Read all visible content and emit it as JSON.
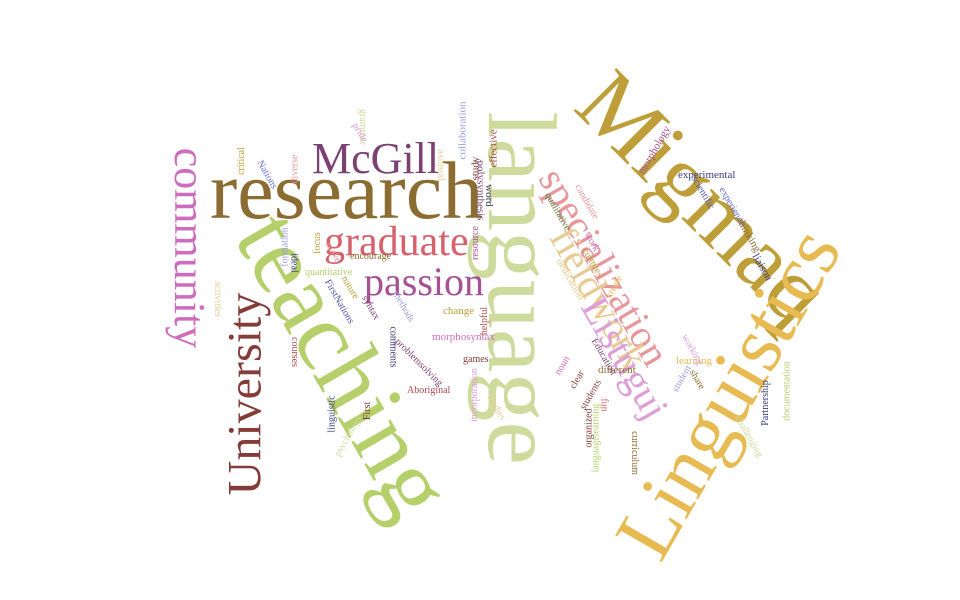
{
  "words": [
    {
      "text": "research",
      "color": "#8c6d31"
    },
    {
      "text": "teaching",
      "color": "#b5cf6b"
    },
    {
      "text": "language",
      "color": "#cedb9c"
    },
    {
      "text": "Migmaq",
      "color": "#bd9e39"
    },
    {
      "text": "Linguistics",
      "color": "#e7ba52"
    },
    {
      "text": "community",
      "color": "#ce6dbd"
    },
    {
      "text": "University",
      "color": "#843c39"
    },
    {
      "text": "McGill",
      "color": "#7b4173"
    },
    {
      "text": "graduate",
      "color": "#d6616b"
    },
    {
      "text": "passion",
      "color": "#a55194"
    },
    {
      "text": "specialization",
      "color": "#e7969c"
    },
    {
      "text": "fieldwork",
      "color": "#e7cb94"
    },
    {
      "text": "Listuguj",
      "color": "#de9ed6"
    },
    {
      "text": "collaboration",
      "color": "#9c9ede"
    },
    {
      "text": "effective",
      "color": "#ad494a"
    },
    {
      "text": "morphology",
      "color": "#a55194"
    },
    {
      "text": "experimental",
      "color": "#393b79"
    },
    {
      "text": "scientific",
      "color": "#5254a3"
    },
    {
      "text": "experience",
      "color": "#6b6ecf"
    },
    {
      "text": "thinking",
      "color": "#8c6d31"
    },
    {
      "text": "liaison",
      "color": "#393b79"
    },
    {
      "text": "Partnership",
      "color": "#393b79"
    },
    {
      "text": "documentation",
      "color": "#b5cf6b"
    },
    {
      "text": "challenging",
      "color": "#cedb9c"
    },
    {
      "text": "curriculum",
      "color": "#8c6d31"
    },
    {
      "text": "languagelearning",
      "color": "#b5cf6b"
    },
    {
      "text": "organized",
      "color": "#843c39"
    },
    {
      "text": "fun",
      "color": "#d6616b"
    },
    {
      "text": "students",
      "color": "#843c39"
    },
    {
      "text": "clear",
      "color": "#843c39"
    },
    {
      "text": "noun",
      "color": "#ce6dbd"
    },
    {
      "text": "different",
      "color": "#8c6d31"
    },
    {
      "text": "Education",
      "color": "#7b4173"
    },
    {
      "text": "learning",
      "color": "#e7ba52"
    },
    {
      "text": "student",
      "color": "#9c9ede"
    },
    {
      "text": "share",
      "color": "#8c6d31"
    },
    {
      "text": "working",
      "color": "#de9ed6"
    },
    {
      "text": "dedication",
      "color": "#e7cb94"
    },
    {
      "text": "create",
      "color": "#e7ba52"
    },
    {
      "text": "cultures",
      "color": "#bd9e39"
    },
    {
      "text": "work",
      "color": "#ce6dbd"
    },
    {
      "text": "qualitative",
      "color": "#637939"
    },
    {
      "text": "candidate",
      "color": "#e7969c"
    },
    {
      "text": "study",
      "color": "#843c39"
    },
    {
      "text": "polysynthesis",
      "color": "#7b4173"
    },
    {
      "text": "word",
      "color": "#393b79"
    },
    {
      "text": "resource",
      "color": "#a55194"
    },
    {
      "text": "helpful",
      "color": "#ad494a"
    },
    {
      "text": "change",
      "color": "#bd9e39"
    },
    {
      "text": "positive",
      "color": "#e7cb94"
    },
    {
      "text": "grammar",
      "color": "#cedb9c"
    },
    {
      "text": "pride",
      "color": "#de9ed6"
    },
    {
      "text": "diverse",
      "color": "#e7969c"
    },
    {
      "text": "critical",
      "color": "#bd9e39"
    },
    {
      "text": "Nations",
      "color": "#6b6ecf"
    },
    {
      "text": "formation",
      "color": "#9c9ede"
    },
    {
      "text": "ideal",
      "color": "#393b79"
    },
    {
      "text": "focus",
      "color": "#bd9e39"
    },
    {
      "text": "make",
      "color": "#e7969c"
    },
    {
      "text": "nature",
      "color": "#bd9e39"
    },
    {
      "text": "encourage",
      "color": "#8c6d31"
    },
    {
      "text": "quantitative",
      "color": "#b5cf6b"
    },
    {
      "text": "FirstNations",
      "color": "#5254a3"
    },
    {
      "text": "syntax",
      "color": "#7b4173"
    },
    {
      "text": "methods",
      "color": "#9c9ede"
    },
    {
      "text": "activities",
      "color": "#e7cb94"
    },
    {
      "text": "courses",
      "color": "#ad494a"
    },
    {
      "text": "comments",
      "color": "#393b79"
    },
    {
      "text": "morphosyntax",
      "color": "#ce6dbd"
    },
    {
      "text": "problemsolving",
      "color": "#7b4173"
    },
    {
      "text": "games",
      "color": "#843c39"
    },
    {
      "text": "incorporation",
      "color": "#de9ed6"
    },
    {
      "text": "Aboriginal",
      "color": "#ad494a"
    },
    {
      "text": "studies",
      "color": "#e7cb94"
    },
    {
      "text": "linguistic",
      "color": "#393b79"
    },
    {
      "text": "First",
      "color": "#843c39"
    },
    {
      "text": "psychology",
      "color": "#cedb9c"
    }
  ]
}
